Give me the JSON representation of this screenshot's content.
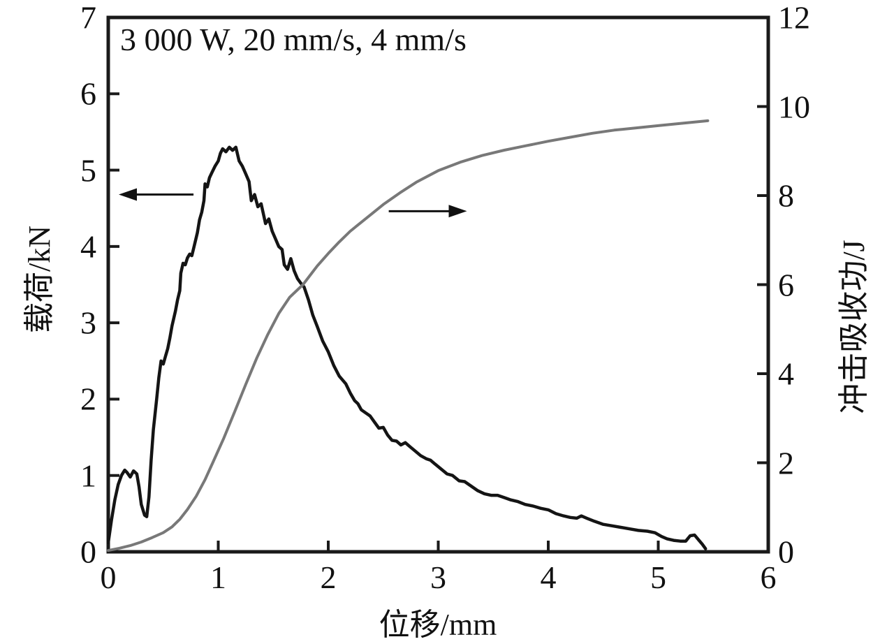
{
  "chart_data": {
    "type": "line",
    "annotation": "3 000 W, 20 mm/s, 4 mm/s",
    "background": "#ffffff",
    "frame_color": "#1a1a1a",
    "axes": {
      "x": {
        "label": "位移/mm",
        "min": 0,
        "max": 6,
        "ticks": [
          0,
          1,
          2,
          3,
          4,
          5,
          6
        ]
      },
      "y_left": {
        "label": "载荷/kN",
        "min": 0,
        "max": 7,
        "ticks": [
          0,
          1,
          2,
          3,
          4,
          5,
          6,
          7
        ]
      },
      "y_right": {
        "label": "冲击吸收功/J",
        "min": 0,
        "max": 12,
        "ticks": [
          0,
          2,
          4,
          6,
          8,
          10,
          12
        ]
      }
    },
    "series": [
      {
        "name": "load-curve",
        "axis": "left",
        "color": "#141414",
        "stroke_width": 4.5,
        "points": [
          [
            0,
            0.12
          ],
          [
            0.03,
            0.42
          ],
          [
            0.06,
            0.68
          ],
          [
            0.09,
            0.88
          ],
          [
            0.12,
            1.0
          ],
          [
            0.15,
            1.07
          ],
          [
            0.17,
            1.04
          ],
          [
            0.2,
            0.98
          ],
          [
            0.23,
            1.06
          ],
          [
            0.26,
            1.02
          ],
          [
            0.28,
            0.85
          ],
          [
            0.3,
            0.62
          ],
          [
            0.33,
            0.48
          ],
          [
            0.35,
            0.46
          ],
          [
            0.37,
            0.72
          ],
          [
            0.39,
            1.2
          ],
          [
            0.41,
            1.6
          ],
          [
            0.44,
            2.0
          ],
          [
            0.46,
            2.28
          ],
          [
            0.48,
            2.5
          ],
          [
            0.5,
            2.46
          ],
          [
            0.52,
            2.56
          ],
          [
            0.54,
            2.66
          ],
          [
            0.56,
            2.8
          ],
          [
            0.58,
            2.96
          ],
          [
            0.61,
            3.15
          ],
          [
            0.63,
            3.3
          ],
          [
            0.65,
            3.42
          ],
          [
            0.66,
            3.65
          ],
          [
            0.68,
            3.78
          ],
          [
            0.7,
            3.76
          ],
          [
            0.72,
            3.85
          ],
          [
            0.74,
            3.9
          ],
          [
            0.76,
            3.88
          ],
          [
            0.78,
            4.0
          ],
          [
            0.81,
            4.18
          ],
          [
            0.83,
            4.35
          ],
          [
            0.85,
            4.45
          ],
          [
            0.87,
            4.6
          ],
          [
            0.88,
            4.82
          ],
          [
            0.9,
            4.78
          ],
          [
            0.92,
            4.9
          ],
          [
            0.94,
            4.96
          ],
          [
            0.97,
            5.05
          ],
          [
            1.0,
            5.12
          ],
          [
            1.02,
            5.22
          ],
          [
            1.04,
            5.28
          ],
          [
            1.07,
            5.24
          ],
          [
            1.1,
            5.3
          ],
          [
            1.13,
            5.26
          ],
          [
            1.16,
            5.3
          ],
          [
            1.19,
            5.12
          ],
          [
            1.22,
            5.05
          ],
          [
            1.25,
            4.95
          ],
          [
            1.28,
            4.85
          ],
          [
            1.3,
            4.6
          ],
          [
            1.33,
            4.68
          ],
          [
            1.36,
            4.52
          ],
          [
            1.39,
            4.56
          ],
          [
            1.43,
            4.3
          ],
          [
            1.46,
            4.36
          ],
          [
            1.49,
            4.2
          ],
          [
            1.52,
            4.1
          ],
          [
            1.55,
            4.0
          ],
          [
            1.58,
            3.96
          ],
          [
            1.6,
            3.76
          ],
          [
            1.63,
            3.7
          ],
          [
            1.66,
            3.84
          ],
          [
            1.69,
            3.68
          ],
          [
            1.72,
            3.58
          ],
          [
            1.75,
            3.52
          ],
          [
            1.78,
            3.47
          ],
          [
            1.82,
            3.3
          ],
          [
            1.86,
            3.1
          ],
          [
            1.9,
            2.95
          ],
          [
            1.95,
            2.76
          ],
          [
            2.0,
            2.62
          ],
          [
            2.05,
            2.44
          ],
          [
            2.1,
            2.3
          ],
          [
            2.16,
            2.2
          ],
          [
            2.2,
            2.08
          ],
          [
            2.24,
            1.98
          ],
          [
            2.27,
            1.94
          ],
          [
            2.3,
            1.86
          ],
          [
            2.34,
            1.82
          ],
          [
            2.38,
            1.78
          ],
          [
            2.42,
            1.7
          ],
          [
            2.46,
            1.62
          ],
          [
            2.5,
            1.63
          ],
          [
            2.54,
            1.53
          ],
          [
            2.58,
            1.46
          ],
          [
            2.62,
            1.45
          ],
          [
            2.66,
            1.4
          ],
          [
            2.7,
            1.43
          ],
          [
            2.74,
            1.38
          ],
          [
            2.79,
            1.32
          ],
          [
            2.84,
            1.26
          ],
          [
            2.89,
            1.22
          ],
          [
            2.93,
            1.2
          ],
          [
            2.97,
            1.15
          ],
          [
            3.03,
            1.08
          ],
          [
            3.08,
            1.02
          ],
          [
            3.13,
            1.0
          ],
          [
            3.19,
            0.93
          ],
          [
            3.24,
            0.92
          ],
          [
            3.3,
            0.86
          ],
          [
            3.36,
            0.8
          ],
          [
            3.42,
            0.76
          ],
          [
            3.48,
            0.74
          ],
          [
            3.54,
            0.74
          ],
          [
            3.6,
            0.71
          ],
          [
            3.66,
            0.68
          ],
          [
            3.72,
            0.66
          ],
          [
            3.79,
            0.62
          ],
          [
            3.86,
            0.6
          ],
          [
            3.93,
            0.57
          ],
          [
            4.0,
            0.55
          ],
          [
            4.07,
            0.5
          ],
          [
            4.14,
            0.47
          ],
          [
            4.2,
            0.45
          ],
          [
            4.26,
            0.44
          ],
          [
            4.3,
            0.47
          ],
          [
            4.35,
            0.44
          ],
          [
            4.42,
            0.4
          ],
          [
            4.5,
            0.36
          ],
          [
            4.58,
            0.34
          ],
          [
            4.66,
            0.32
          ],
          [
            4.74,
            0.3
          ],
          [
            4.82,
            0.28
          ],
          [
            4.9,
            0.27
          ],
          [
            4.97,
            0.25
          ],
          [
            5.03,
            0.2
          ],
          [
            5.08,
            0.17
          ],
          [
            5.14,
            0.15
          ],
          [
            5.2,
            0.14
          ],
          [
            5.25,
            0.14
          ],
          [
            5.29,
            0.21
          ],
          [
            5.33,
            0.22
          ],
          [
            5.37,
            0.15
          ],
          [
            5.4,
            0.1
          ],
          [
            5.43,
            0.04
          ]
        ]
      },
      {
        "name": "absorbed-energy-curve",
        "axis": "right",
        "color": "#787878",
        "stroke_width": 4,
        "points": [
          [
            0,
            0.03
          ],
          [
            0.1,
            0.08
          ],
          [
            0.2,
            0.14
          ],
          [
            0.3,
            0.22
          ],
          [
            0.4,
            0.32
          ],
          [
            0.5,
            0.43
          ],
          [
            0.58,
            0.56
          ],
          [
            0.65,
            0.73
          ],
          [
            0.72,
            0.95
          ],
          [
            0.8,
            1.25
          ],
          [
            0.88,
            1.62
          ],
          [
            0.95,
            2.0
          ],
          [
            1.05,
            2.55
          ],
          [
            1.15,
            3.15
          ],
          [
            1.25,
            3.76
          ],
          [
            1.35,
            4.35
          ],
          [
            1.45,
            4.88
          ],
          [
            1.55,
            5.35
          ],
          [
            1.65,
            5.72
          ],
          [
            1.77,
            6.0
          ],
          [
            1.9,
            6.42
          ],
          [
            2.0,
            6.7
          ],
          [
            2.1,
            6.96
          ],
          [
            2.2,
            7.2
          ],
          [
            2.35,
            7.5
          ],
          [
            2.5,
            7.8
          ],
          [
            2.65,
            8.06
          ],
          [
            2.8,
            8.3
          ],
          [
            3.0,
            8.56
          ],
          [
            3.2,
            8.75
          ],
          [
            3.4,
            8.9
          ],
          [
            3.6,
            9.02
          ],
          [
            3.8,
            9.12
          ],
          [
            4.0,
            9.22
          ],
          [
            4.2,
            9.31
          ],
          [
            4.4,
            9.4
          ],
          [
            4.6,
            9.47
          ],
          [
            4.8,
            9.52
          ],
          [
            5.0,
            9.57
          ],
          [
            5.2,
            9.62
          ],
          [
            5.45,
            9.68
          ]
        ]
      }
    ],
    "arrows": [
      {
        "name": "load-curve-arrow",
        "axis": "left",
        "direction": "left",
        "y": 4.68,
        "from_x": 0.775,
        "to_x": 0.095,
        "color": "#111111"
      },
      {
        "name": "energy-curve-arrow",
        "axis": "right",
        "direction": "right",
        "y": 7.65,
        "from_x": 2.55,
        "to_x": 3.26,
        "color": "#111111"
      }
    ]
  }
}
